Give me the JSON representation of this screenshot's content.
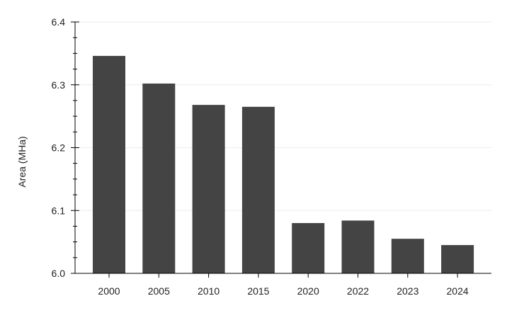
{
  "chart_data": {
    "type": "bar",
    "title": "",
    "xlabel": "",
    "ylabel": "Area (MHa)",
    "categories": [
      "2000",
      "2005",
      "2010",
      "2015",
      "2020",
      "2022",
      "2023",
      "2024"
    ],
    "values": [
      6.346,
      6.302,
      6.268,
      6.265,
      6.08,
      6.084,
      6.055,
      6.045
    ],
    "ylim": [
      6.0,
      6.4
    ],
    "yticks": [
      "6.0",
      "6.1",
      "6.2",
      "6.3",
      "6.4"
    ],
    "grid": true,
    "legend": "none",
    "bar_color": "#444444"
  }
}
